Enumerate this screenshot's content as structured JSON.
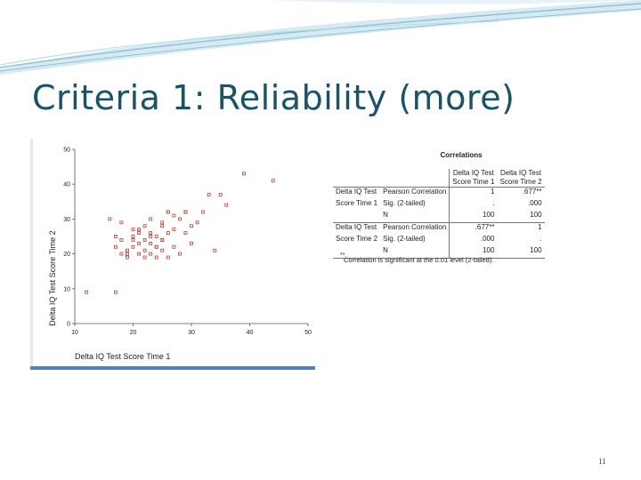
{
  "slide": {
    "title": "Criteria 1: Reliability (more)",
    "page_number": "11",
    "accent_color": "#17536b",
    "swoosh_color": "#8fc3d6"
  },
  "chart_data": {
    "type": "scatter",
    "xlabel": "Delta IQ Test Score Time 1",
    "ylabel": "Delta IQ Test Score Time 2",
    "xlim": [
      10,
      50
    ],
    "ylim": [
      0,
      50
    ],
    "xticks": [
      "10",
      "20",
      "30",
      "40",
      "50"
    ],
    "yticks": [
      "0",
      "10",
      "20",
      "30",
      "40",
      "50"
    ],
    "grid": false,
    "marker_color": "#c0392b",
    "x": [
      12,
      17,
      17,
      18,
      19,
      20,
      20,
      21,
      21,
      21,
      22,
      22,
      22,
      22,
      23,
      23,
      23,
      24,
      24,
      24,
      25,
      25,
      25,
      26,
      26,
      26,
      27,
      27,
      28,
      28,
      29,
      29,
      30,
      30,
      31,
      32,
      34,
      35,
      36,
      39,
      44,
      16,
      18,
      18,
      20,
      20,
      23,
      25,
      25,
      27,
      33,
      17,
      19,
      21,
      23,
      19,
      26,
      29,
      24
    ],
    "y": [
      9,
      9,
      22,
      29,
      21,
      24,
      27,
      20,
      23,
      26,
      21,
      24,
      19,
      28,
      20,
      23,
      26,
      19,
      22,
      25,
      29,
      24,
      21,
      32,
      19,
      26,
      27,
      22,
      20,
      30,
      32,
      26,
      28,
      23,
      29,
      32,
      21,
      37,
      34,
      43,
      41,
      30,
      20,
      24,
      22,
      25,
      30,
      28,
      24,
      31,
      37,
      25,
      19,
      27,
      25,
      20,
      32,
      32,
      22
    ]
  },
  "correlations": {
    "title": "Correlations",
    "col_headers": [
      "Delta IQ Test Score Time 1",
      "Delta IQ Test Score Time 2"
    ],
    "col_headers_line1": [
      "Delta IQ Test",
      "Delta IQ Test"
    ],
    "col_headers_line2": [
      "Score Time 1",
      "Score Time 2"
    ],
    "rows": [
      {
        "group_line1": "Delta IQ Test",
        "group_line2": "Score Time 1",
        "stats": [
          {
            "label": "Pearson Correlation",
            "v1": "1",
            "v2": ".677**"
          },
          {
            "label": "Sig. (2-tailed)",
            "v1": ".",
            "v2": ".000"
          },
          {
            "label": "N",
            "v1": "100",
            "v2": "100"
          }
        ]
      },
      {
        "group_line1": "Delta IQ Test",
        "group_line2": "Score Time 2",
        "stats": [
          {
            "label": "Pearson Correlation",
            "v1": ".677**",
            "v2": "1"
          },
          {
            "label": "Sig. (2-tailed)",
            "v1": ".000",
            "v2": "."
          },
          {
            "label": "N",
            "v1": "100",
            "v2": "100"
          }
        ]
      }
    ],
    "footnote_mark": "**.",
    "footnote": "Correlation is significant at the 0.01 level (2-tailed)."
  }
}
